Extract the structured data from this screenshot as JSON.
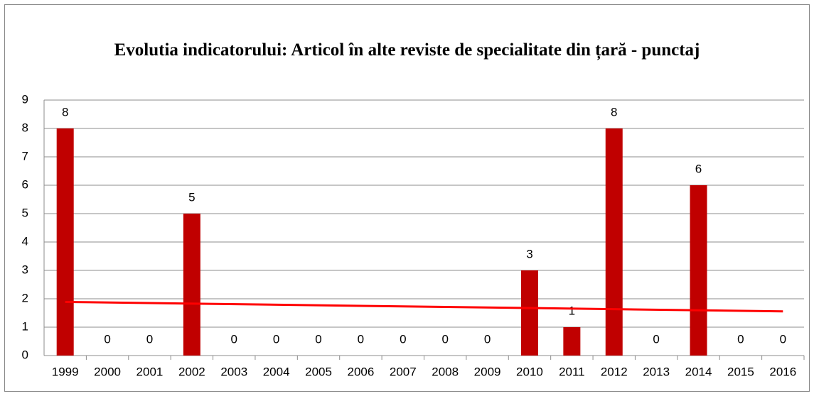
{
  "chart_data": {
    "type": "bar",
    "title": "Evolutia indicatorului: Articol în alte reviste de specialitate din țară - punctaj",
    "categories": [
      "1999",
      "2000",
      "2001",
      "2002",
      "2003",
      "2004",
      "2005",
      "2006",
      "2007",
      "2008",
      "2009",
      "2010",
      "2011",
      "2012",
      "2013",
      "2014",
      "2015",
      "2016"
    ],
    "values": [
      8,
      0,
      0,
      5,
      0,
      0,
      0,
      0,
      0,
      0,
      0,
      3,
      1,
      8,
      0,
      6,
      0,
      0
    ],
    "color": "#c00000",
    "trendline": "linear",
    "trendline_color": "#ff0000",
    "ylim": [
      0,
      9
    ],
    "yticks": [
      0,
      1,
      2,
      3,
      4,
      5,
      6,
      7,
      8,
      9
    ],
    "grid": true
  }
}
